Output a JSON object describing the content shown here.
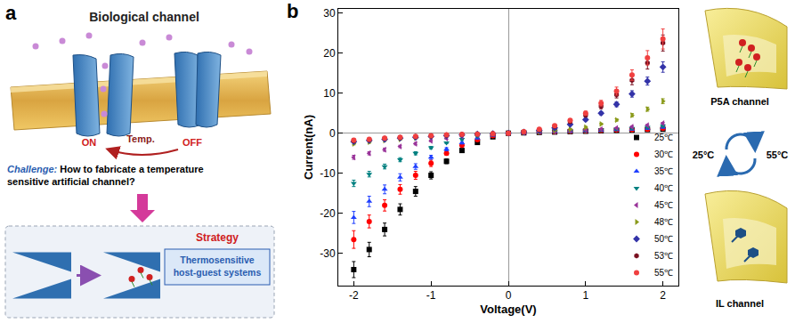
{
  "panel_a": {
    "label": "a",
    "title": "Biological channel",
    "on": "ON",
    "temp": "Temp.",
    "off": "OFF",
    "challenge_label": "Challenge:",
    "challenge_text": "How to fabricate a temperature sensitive artificial channel?",
    "strategy": "Strategy",
    "strategy_text": "Thermosensitive host-guest systems"
  },
  "panel_b": {
    "label": "b",
    "top_icon": "P5A channel",
    "left_temp": "25°C",
    "right_temp": "55°C",
    "bottom_icon": "IL channel"
  },
  "chart_data": {
    "type": "scatter",
    "x_label": "Voltage(V)",
    "y_label": "Current(nA)",
    "x": [
      -2,
      -1.8,
      -1.6,
      -1.4,
      -1.2,
      -1,
      -0.8,
      -0.6,
      -0.4,
      -0.2,
      0,
      0.2,
      0.4,
      0.6,
      0.8,
      1,
      1.2,
      1.4,
      1.6,
      1.8,
      2
    ],
    "xlim": [
      -2.2,
      2.2
    ],
    "xticks": [
      -2,
      -1,
      0,
      1,
      2
    ],
    "ylim": [
      -38,
      31
    ],
    "yticks": [
      -30,
      -20,
      -10,
      0,
      10,
      20,
      30
    ],
    "grid": false,
    "legend": "lower right",
    "series": [
      {
        "name": "25℃",
        "color": "#000000",
        "marker": "square",
        "values": [
          -34,
          -29,
          -24,
          -19,
          -14.5,
          -10.5,
          -7,
          -4.3,
          -2.3,
          -0.9,
          0,
          0.1,
          0.2,
          0.3,
          0.4,
          0.5,
          0.6,
          0.7,
          0.8,
          0.9,
          1.0
        ],
        "errors": [
          2,
          1.8,
          1.6,
          1.4,
          1.2,
          0.9,
          0.6,
          0.4,
          0.2,
          0.1,
          0,
          0.1,
          0.1,
          0.1,
          0.1,
          0.1,
          0.1,
          0.1,
          0.1,
          0.1,
          0.1
        ]
      },
      {
        "name": "30℃",
        "color": "#ff0000",
        "marker": "circle",
        "values": [
          -26.5,
          -22,
          -18,
          -14,
          -10.5,
          -7.5,
          -5,
          -3,
          -1.6,
          -0.6,
          0,
          0.15,
          0.3,
          0.4,
          0.5,
          0.6,
          0.7,
          0.8,
          0.9,
          1.0,
          1.2
        ],
        "errors": [
          2.2,
          1.6,
          1.4,
          1.2,
          1,
          0.8,
          0.5,
          0.3,
          0.2,
          0.1,
          0,
          0.1,
          0.1,
          0.1,
          0.1,
          0.1,
          0.1,
          0.1,
          0.1,
          0.2,
          0.2
        ]
      },
      {
        "name": "35℃",
        "color": "#1f3fff",
        "marker": "triangle-up",
        "values": [
          -21,
          -17,
          -14,
          -11,
          -8.3,
          -6,
          -4,
          -2.4,
          -1.2,
          -0.5,
          0,
          0.15,
          0.3,
          0.4,
          0.5,
          0.6,
          0.7,
          0.9,
          1.0,
          1.2,
          1.5
        ],
        "errors": [
          1.5,
          1.3,
          1.1,
          0.9,
          0.7,
          0.5,
          0.4,
          0.3,
          0.2,
          0.1,
          0,
          0.1,
          0.1,
          0.1,
          0.1,
          0.1,
          0.1,
          0.1,
          0.2,
          0.2,
          0.2
        ]
      },
      {
        "name": "40℃",
        "color": "#008080",
        "marker": "triangle-down",
        "values": [
          -12.5,
          -10.2,
          -8.3,
          -6.6,
          -5,
          -3.6,
          -2.4,
          -1.5,
          -0.8,
          -0.3,
          0,
          0.15,
          0.3,
          0.4,
          0.5,
          0.6,
          0.8,
          1.0,
          1.2,
          1.5,
          1.8
        ],
        "errors": [
          0.8,
          0.7,
          0.6,
          0.5,
          0.4,
          0.3,
          0.2,
          0.2,
          0.1,
          0.1,
          0,
          0.1,
          0.1,
          0.1,
          0.1,
          0.1,
          0.1,
          0.1,
          0.2,
          0.2,
          0.2
        ]
      },
      {
        "name": "45℃",
        "color": "#993399",
        "marker": "triangle-left",
        "values": [
          -6,
          -5,
          -4.1,
          -3.3,
          -2.6,
          -1.9,
          -1.3,
          -0.8,
          -0.4,
          -0.2,
          0,
          0.15,
          0.3,
          0.45,
          0.6,
          0.8,
          1.0,
          1.3,
          1.6,
          2.0,
          2.5
        ],
        "errors": [
          0.5,
          0.4,
          0.4,
          0.3,
          0.3,
          0.2,
          0.2,
          0.1,
          0.1,
          0.1,
          0,
          0.1,
          0.1,
          0.1,
          0.1,
          0.1,
          0.1,
          0.1,
          0.2,
          0.2,
          0.2
        ]
      },
      {
        "name": "48℃",
        "color": "#8a9a1a",
        "marker": "triangle-right",
        "values": [
          -2.6,
          -2.2,
          -1.8,
          -1.5,
          -1.2,
          -0.9,
          -0.6,
          -0.4,
          -0.2,
          -0.1,
          0,
          0.2,
          0.4,
          0.7,
          1.0,
          1.5,
          2.3,
          3.3,
          4.5,
          6.0,
          8.0
        ],
        "errors": [
          0.3,
          0.3,
          0.2,
          0.2,
          0.2,
          0.1,
          0.1,
          0.1,
          0.1,
          0.1,
          0,
          0.1,
          0.1,
          0.1,
          0.1,
          0.2,
          0.2,
          0.3,
          0.4,
          0.5,
          0.6
        ]
      },
      {
        "name": "50℃",
        "color": "#3333a8",
        "marker": "diamond",
        "values": [
          -2.1,
          -1.8,
          -1.5,
          -1.2,
          -1.0,
          -0.8,
          -0.6,
          -0.4,
          -0.2,
          -0.1,
          0,
          0.3,
          0.7,
          1.3,
          2.2,
          3.4,
          5.0,
          7.2,
          9.8,
          13.0,
          16.5
        ],
        "errors": [
          0.3,
          0.3,
          0.2,
          0.2,
          0.2,
          0.1,
          0.1,
          0.1,
          0.1,
          0.1,
          0,
          0.1,
          0.1,
          0.1,
          0.2,
          0.3,
          0.4,
          0.6,
          0.8,
          1,
          1.3
        ]
      },
      {
        "name": "53℃",
        "color": "#7a1020",
        "marker": "hexagon",
        "values": [
          -1.9,
          -1.6,
          -1.3,
          -1.1,
          -0.9,
          -0.7,
          -0.5,
          -0.3,
          -0.2,
          -0.1,
          0,
          0.4,
          0.9,
          1.7,
          2.9,
          4.5,
          6.7,
          9.6,
          13.2,
          17.5,
          22.5
        ],
        "errors": [
          0.3,
          0.2,
          0.2,
          0.2,
          0.1,
          0.1,
          0.1,
          0.1,
          0.1,
          0.1,
          0,
          0.1,
          0.1,
          0.2,
          0.3,
          0.4,
          0.6,
          0.8,
          1.1,
          1.5,
          2
        ]
      },
      {
        "name": "55℃",
        "color": "#f04040",
        "marker": "circle",
        "values": [
          -1.7,
          -1.5,
          -1.2,
          -1.0,
          -0.8,
          -0.6,
          -0.4,
          -0.3,
          -0.2,
          -0.1,
          0,
          0.4,
          1.0,
          1.9,
          3.2,
          5.0,
          7.5,
          10.5,
          14.5,
          18.8,
          23.5
        ],
        "errors": [
          0.3,
          0.2,
          0.2,
          0.2,
          0.1,
          0.1,
          0.1,
          0.1,
          0.1,
          0.1,
          0,
          0.1,
          0.1,
          0.2,
          0.3,
          0.5,
          0.7,
          1,
          1.3,
          1.8,
          2.5
        ]
      }
    ]
  }
}
